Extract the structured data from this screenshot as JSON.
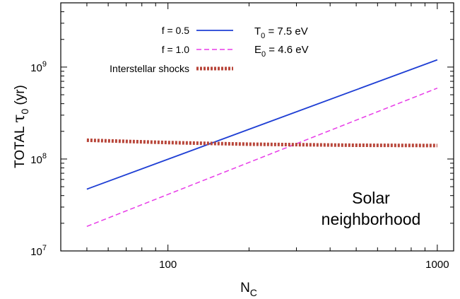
{
  "chart_data": {
    "type": "line",
    "xlabel": {
      "main": "N",
      "sub": "C"
    },
    "ylabel": {
      "main": "TOTAL ",
      "greek": "τ",
      "sub": "0",
      "unit": "(yr)"
    },
    "xscale": "log",
    "yscale": "log",
    "xlim": [
      40,
      1150
    ],
    "ylim": [
      10000000,
      5000000000
    ],
    "x_ticks": [
      {
        "value": 100,
        "label": "100"
      },
      {
        "value": 1000,
        "label": "1000"
      }
    ],
    "y_ticks": [
      {
        "value": 10000000,
        "base": "10",
        "exp": "7"
      },
      {
        "value": 100000000,
        "base": "10",
        "exp": "8"
      },
      {
        "value": 1000000000,
        "base": "10",
        "exp": "9"
      }
    ],
    "grid": false,
    "legend_position": "top-left",
    "series": [
      {
        "name": "f = 0.5",
        "color": "#1f3fd4",
        "style": "solid",
        "x": [
          50,
          1000
        ],
        "y": [
          47000000,
          1200000000
        ]
      },
      {
        "name": "f = 1.0",
        "color": "#e83ce8",
        "style": "dashed",
        "x": [
          50,
          1000
        ],
        "y": [
          18500000,
          590000000
        ]
      },
      {
        "name": "Interstellar shocks",
        "color": "#b8463a",
        "style": "dotted-thick",
        "x": [
          50,
          100,
          200,
          500,
          1000
        ],
        "y": [
          160000000,
          151000000,
          145000000,
          141000000,
          140000000
        ]
      }
    ],
    "annotations": [
      {
        "id": "t0",
        "main": "T",
        "sub": "0",
        "rest": " = 7.5 eV"
      },
      {
        "id": "e0",
        "main": "E",
        "sub": "0",
        "rest": " = 4.6 eV"
      }
    ],
    "region_label": [
      "Solar",
      "neighborhood"
    ]
  }
}
